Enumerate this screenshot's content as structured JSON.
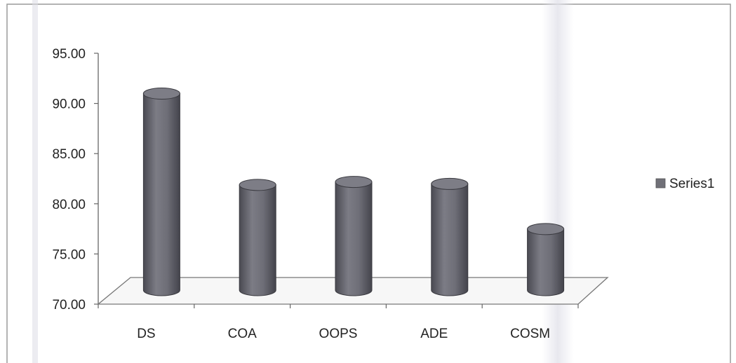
{
  "chart_data": {
    "type": "bar",
    "style": "3d-cylinder",
    "title": "",
    "xlabel": "",
    "ylabel": "",
    "categories": [
      "DS",
      "COA",
      "OOPS",
      "ADE",
      "COSM"
    ],
    "series": [
      {
        "name": "Series1",
        "values": [
          91.4,
          82.3,
          82.6,
          82.4,
          77.9
        ],
        "color": "#707077"
      }
    ],
    "ylim": [
      70,
      95
    ],
    "yticks": [
      "70.00",
      "75.00",
      "80.00",
      "85.00",
      "90.00",
      "95.00"
    ],
    "grid": false,
    "legend": "right"
  }
}
